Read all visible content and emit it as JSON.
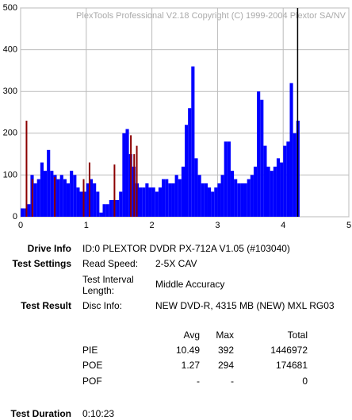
{
  "chart_data": {
    "type": "bar",
    "watermark": "PlexTools Professional V2.18 Copyright (C) 1999-2004 Plextor SA/NV",
    "x": [
      0,
      0.05,
      0.1,
      0.15,
      0.2,
      0.25,
      0.3,
      0.35,
      0.4,
      0.45,
      0.5,
      0.55,
      0.6,
      0.65,
      0.7,
      0.75,
      0.8,
      0.85,
      0.9,
      0.95,
      1,
      1.05,
      1.1,
      1.15,
      1.2,
      1.25,
      1.3,
      1.35,
      1.4,
      1.45,
      1.5,
      1.55,
      1.6,
      1.65,
      1.7,
      1.75,
      1.8,
      1.85,
      1.9,
      1.95,
      2,
      2.05,
      2.1,
      2.15,
      2.2,
      2.25,
      2.3,
      2.35,
      2.4,
      2.45,
      2.5,
      2.55,
      2.6,
      2.65,
      2.7,
      2.75,
      2.8,
      2.85,
      2.9,
      2.95,
      3,
      3.05,
      3.1,
      3.15,
      3.2,
      3.25,
      3.3,
      3.35,
      3.4,
      3.45,
      3.5,
      3.55,
      3.6,
      3.65,
      3.7,
      3.75,
      3.8,
      3.85,
      3.9,
      3.95,
      4,
      4.05,
      4.1,
      4.15,
      4.2
    ],
    "series": [
      {
        "name": "PIE",
        "color": "#0000ff",
        "values": [
          20,
          20,
          30,
          100,
          80,
          90,
          130,
          110,
          160,
          110,
          100,
          90,
          100,
          90,
          80,
          110,
          100,
          70,
          60,
          60,
          80,
          90,
          80,
          60,
          10,
          30,
          30,
          40,
          40,
          40,
          60,
          200,
          210,
          150,
          120,
          80,
          70,
          70,
          80,
          70,
          70,
          60,
          70,
          90,
          90,
          80,
          80,
          100,
          90,
          120,
          220,
          260,
          360,
          140,
          100,
          80,
          80,
          70,
          60,
          70,
          80,
          100,
          180,
          180,
          110,
          90,
          80,
          80,
          80,
          90,
          100,
          120,
          300,
          280,
          170,
          120,
          110,
          120,
          140,
          130,
          170,
          180,
          320,
          200,
          230
        ]
      },
      {
        "name": "POE",
        "color": "#8b0000",
        "x": [
          0.09,
          0.18,
          0.52,
          0.96,
          1.05,
          1.43,
          1.68,
          1.73,
          1.77
        ],
        "values": [
          230,
          90,
          95,
          90,
          130,
          125,
          195,
          150,
          170
        ]
      }
    ],
    "end_marker": 4.22,
    "xlim": [
      0,
      5
    ],
    "xticks": [
      0,
      1,
      2,
      3,
      4,
      5
    ],
    "ylim": [
      0,
      500
    ],
    "yticks": [
      0,
      100,
      200,
      300,
      400,
      500
    ],
    "grid": true
  },
  "info": {
    "drive_label": "Drive Info",
    "drive": "ID:0 PLEXTOR DVDR PX-712A V1.05 (#103040)",
    "settings_label": "Test Settings",
    "speed_label": "Read Speed:",
    "speed": "2-5X CAV",
    "interval_label": "Test Interval Length:",
    "interval": "Middle Accuracy",
    "result_label": "Test Result",
    "disc_label": "Disc Info:",
    "disc": "NEW DVD-R, 4315 MB (NEW) MXL RG03",
    "columns": [
      "Avg",
      "Max",
      "Total"
    ],
    "rows": [
      {
        "label": "PIE",
        "cells": [
          10.49,
          392,
          1446972
        ]
      },
      {
        "label": "POE",
        "cells": [
          1.27,
          294,
          174681
        ]
      },
      {
        "label": "POF",
        "cells": [
          "-",
          "-",
          0
        ]
      }
    ],
    "duration_label": "Test Duration",
    "duration": "0:10:23"
  }
}
